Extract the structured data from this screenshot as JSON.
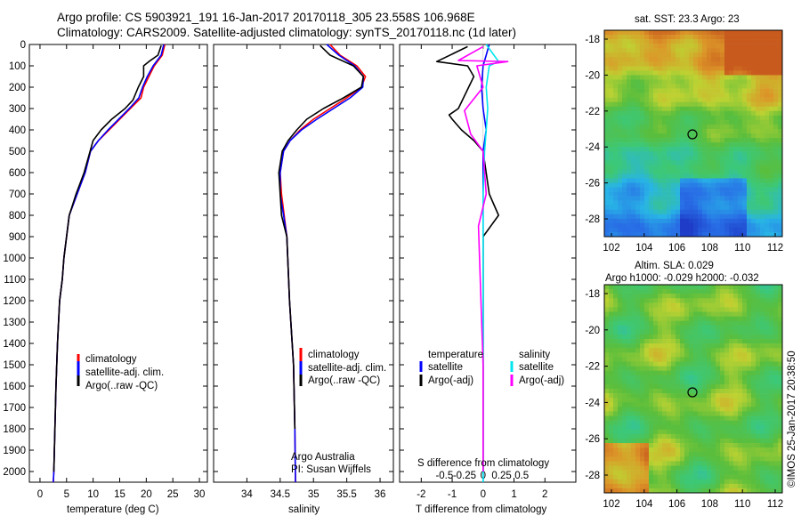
{
  "title": {
    "line1": "Argo profile: CS 5903921_191 16-Jan-2017 20170118_305 23.558S 106.968E",
    "line2": "Climatology: CARS2009. Satellite-adjusted climatology: synTS_20170118.nc (1d later)"
  },
  "chart_data": [
    {
      "type": "line",
      "xlabel": "temperature (deg C)",
      "ylabel": "",
      "xlim": [
        -2,
        31.5
      ],
      "ylim": [
        2050,
        0
      ],
      "xticks": [
        0,
        5,
        10,
        15,
        20,
        25,
        30
      ],
      "yticks": [
        0,
        100,
        200,
        300,
        400,
        500,
        600,
        700,
        800,
        900,
        1000,
        1100,
        1200,
        1300,
        1400,
        1500,
        1600,
        1700,
        1800,
        1900,
        2000
      ],
      "legend": [
        "climatology",
        "satellite-adj. clim.",
        "Argo(..raw -QC)"
      ],
      "series": [
        {
          "name": "climatology",
          "color": "#ff0000",
          "x": [
            23.5,
            23.0,
            21.5,
            20.5,
            19.5,
            19.0,
            17.0,
            15.0,
            13.0,
            11.0,
            9.5,
            8.5,
            7.0,
            5.5,
            5.0,
            4.5,
            4.2,
            3.7,
            3.3,
            3.0,
            2.8,
            2.6,
            2.5
          ],
          "y": [
            0,
            50,
            100,
            150,
            200,
            250,
            300,
            350,
            400,
            450,
            500,
            600,
            700,
            800,
            900,
            1000,
            1100,
            1200,
            1400,
            1600,
            1800,
            2000,
            2050
          ]
        },
        {
          "name": "satellite-adj. clim.",
          "color": "#0000ff",
          "x": [
            23.3,
            22.8,
            21.3,
            20.2,
            19.3,
            18.6,
            16.8,
            14.8,
            12.8,
            11.0,
            9.5,
            8.5,
            7.0,
            5.5,
            5.0,
            4.5,
            4.2,
            3.7,
            3.3,
            3.0,
            2.8,
            2.6,
            2.5
          ],
          "y": [
            0,
            50,
            100,
            150,
            200,
            250,
            300,
            350,
            400,
            450,
            500,
            600,
            700,
            800,
            900,
            1000,
            1100,
            1200,
            1400,
            1600,
            1800,
            2000,
            2050
          ]
        },
        {
          "name": "Argo(..raw -QC)",
          "color": "#000000",
          "x": [
            22.8,
            22.2,
            20.5,
            19.5,
            19.5,
            18.5,
            17.5,
            16.0,
            13.5,
            11.5,
            10.0,
            8.3,
            6.8,
            5.5,
            5.0,
            4.5,
            4.2,
            3.7,
            3.3,
            3.0,
            2.8,
            2.6
          ],
          "y": [
            5,
            50,
            80,
            100,
            150,
            200,
            260,
            300,
            350,
            400,
            450,
            600,
            700,
            800,
            900,
            1000,
            1100,
            1200,
            1400,
            1600,
            1800,
            2000
          ]
        }
      ]
    },
    {
      "type": "line",
      "xlabel": "salinity",
      "xlim": [
        33.5,
        36.2
      ],
      "ylim": [
        2050,
        0
      ],
      "xticks": [
        34,
        34.5,
        35,
        35.5,
        36
      ],
      "legend": [
        "climatology",
        "satellite-adj. clim.",
        "Argo(..raw -QC)"
      ],
      "annotations": [
        "Argo Australia",
        "PI: Susan Wijffels"
      ],
      "series": [
        {
          "name": "climatology",
          "color": "#ff0000",
          "x": [
            35.25,
            35.4,
            35.65,
            35.78,
            35.72,
            35.5,
            35.25,
            35.0,
            34.8,
            34.65,
            34.55,
            34.5,
            34.52,
            34.56,
            34.6,
            34.64,
            34.7,
            34.72,
            34.73
          ],
          "y": [
            0,
            50,
            100,
            150,
            200,
            250,
            300,
            350,
            400,
            450,
            500,
            600,
            700,
            800,
            900,
            1200,
            1500,
            1800,
            2050
          ]
        },
        {
          "name": "satellite-adj. clim.",
          "color": "#0000ff",
          "x": [
            35.2,
            35.38,
            35.62,
            35.75,
            35.74,
            35.55,
            35.3,
            35.05,
            34.82,
            34.65,
            34.55,
            34.5,
            34.5,
            34.55,
            34.6,
            34.64,
            34.7,
            34.72,
            34.73
          ],
          "y": [
            0,
            50,
            100,
            150,
            200,
            250,
            300,
            350,
            400,
            450,
            500,
            600,
            700,
            800,
            900,
            1200,
            1500,
            1800,
            2050
          ]
        },
        {
          "name": "Argo(..raw -QC)",
          "color": "#000000",
          "x": [
            35.1,
            35.25,
            35.6,
            35.75,
            35.72,
            35.45,
            35.15,
            34.9,
            34.75,
            34.62,
            34.53,
            34.48,
            34.5,
            34.52,
            34.6,
            34.64,
            34.7,
            34.72
          ],
          "y": [
            5,
            50,
            100,
            150,
            200,
            250,
            300,
            350,
            400,
            450,
            500,
            600,
            700,
            800,
            900,
            1200,
            1500,
            1800
          ]
        }
      ]
    },
    {
      "type": "line",
      "xlabel": "T difference from climatology",
      "top_axis_label": "S difference from climatology",
      "xlim": [
        -2.7,
        3.0
      ],
      "ylim": [
        2050,
        0
      ],
      "xticks": [
        -2,
        -1,
        0,
        1,
        2
      ],
      "top_ticks": [
        "-0.5",
        "-0.25",
        "0",
        "0.25",
        "0.5"
      ],
      "legend_headers": [
        "temperature",
        "salinity"
      ],
      "legend": [
        "satellite",
        "Argo(-adj)",
        "satellite",
        "Argo(-adj)"
      ],
      "series": [
        {
          "name": "satellite",
          "color": "#0000ff",
          "x": [
            0.2,
            0.1,
            0.0,
            -0.05,
            0.0,
            0.1,
            0.0,
            0.0,
            0.0,
            0.0,
            0.0
          ],
          "y": [
            0,
            50,
            100,
            200,
            300,
            400,
            500,
            700,
            1000,
            1500,
            2050
          ]
        },
        {
          "name": "Argo(-adj)",
          "color": "#000000",
          "x": [
            -0.5,
            -1.5,
            -0.5,
            -0.3,
            -0.8,
            -1.1,
            -1.0,
            -0.7,
            -0.3,
            0.0,
            0.2,
            0.5,
            0.0,
            0.0,
            0.0
          ],
          "y": [
            10,
            80,
            100,
            150,
            300,
            330,
            350,
            400,
            450,
            500,
            700,
            800,
            900,
            1500,
            2000
          ]
        },
        {
          "name": "satellite",
          "color": "#00e5ee",
          "x": [
            0.1,
            0.5,
            0.2,
            0.1,
            0.15,
            0.1,
            0.05,
            0.0,
            0.0,
            0.0
          ],
          "y": [
            0,
            80,
            100,
            200,
            300,
            400,
            500,
            700,
            1500,
            2050
          ]
        },
        {
          "name": "Argo(-adj)",
          "color": "#ff00ff",
          "x": [
            0.0,
            -0.8,
            0.8,
            -0.2,
            0.0,
            -0.6,
            -0.4,
            0.0,
            0.1,
            -0.15,
            0.0,
            0.0
          ],
          "y": [
            10,
            75,
            80,
            100,
            200,
            310,
            420,
            500,
            700,
            850,
            1500,
            2000
          ]
        }
      ]
    }
  ],
  "maps": {
    "sst": {
      "title": "sat. SST: 23.3  Argo: 23",
      "xticks": [
        "102",
        "104",
        "106",
        "108",
        "110",
        "112"
      ],
      "yticks": [
        "-18",
        "-20",
        "-22",
        "-24",
        "-26",
        "-28"
      ]
    },
    "sla": {
      "title1": "Altim. SLA: 0.029",
      "title2": "Argo h1000: -0.029 h2000: -0.032",
      "xticks": [
        "102",
        "104",
        "106",
        "108",
        "110",
        "112"
      ],
      "yticks": [
        "-18",
        "-20",
        "-22",
        "-24",
        "-26",
        "-28"
      ]
    }
  },
  "credit": "©IMOS 25-Jan-2017 20:38:50"
}
